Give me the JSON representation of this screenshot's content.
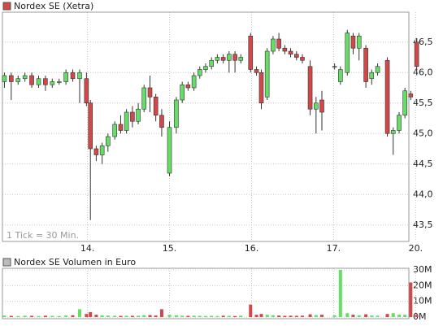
{
  "chart_data": [
    {
      "type": "candlestick",
      "title": "Nordex SE (Xetra)",
      "annotation": "1 Tick = 30 Min.",
      "x": [
        -0.012,
        0.071,
        0.155,
        0.238,
        0.321,
        0.405,
        0.488,
        0.571,
        0.655,
        0.738,
        0.821,
        0.905,
        0.988,
        1.036,
        1.107,
        1.179,
        1.25,
        1.333,
        1.405,
        1.476,
        1.548,
        1.619,
        1.69,
        1.762,
        1.833,
        1.905,
        2.0,
        2.083,
        2.155,
        2.226,
        2.298,
        2.369,
        2.44,
        2.512,
        2.583,
        2.655,
        2.726,
        2.798,
        2.869,
        2.988,
        3.06,
        3.119,
        3.19,
        3.262,
        3.333,
        3.405,
        3.476,
        3.548,
        3.619,
        3.714,
        3.786,
        3.857,
        4.012,
        4.083,
        4.167,
        4.238,
        4.31,
        4.393,
        4.464,
        4.536,
        4.655,
        4.726,
        4.798,
        4.869,
        4.94,
        5.012
      ],
      "open": [
        45.85,
        45.95,
        45.85,
        45.9,
        45.95,
        45.8,
        45.9,
        45.8,
        45.85,
        45.85,
        46.0,
        45.9,
        45.9,
        45.5,
        44.75,
        44.65,
        44.8,
        44.95,
        45.15,
        45.05,
        45.35,
        45.2,
        45.4,
        45.75,
        45.6,
        45.3,
        44.35,
        45.1,
        45.55,
        45.8,
        45.75,
        45.95,
        46.05,
        46.1,
        46.2,
        46.25,
        46.2,
        46.3,
        46.2,
        46.6,
        46.05,
        46.0,
        45.6,
        46.35,
        46.55,
        46.4,
        46.35,
        46.3,
        46.25,
        46.1,
        45.4,
        45.55,
        46.1,
        45.85,
        46.0,
        46.6,
        46.4,
        46.4,
        45.9,
        46.0,
        46.2,
        45.0,
        45.05,
        45.3,
        45.65,
        46.5
      ],
      "high": [
        46.0,
        46.0,
        45.95,
        46.0,
        46.0,
        45.95,
        45.95,
        45.9,
        45.9,
        46.05,
        46.05,
        46.05,
        46.0,
        45.55,
        44.8,
        44.85,
        45.0,
        45.2,
        45.3,
        45.4,
        45.45,
        45.5,
        45.8,
        45.95,
        45.65,
        45.4,
        45.2,
        45.6,
        45.85,
        45.85,
        46.0,
        46.1,
        46.15,
        46.25,
        46.3,
        46.3,
        46.35,
        46.35,
        46.3,
        46.65,
        46.1,
        46.05,
        46.4,
        46.6,
        46.65,
        46.45,
        46.4,
        46.35,
        46.3,
        46.2,
        45.6,
        45.7,
        46.15,
        46.1,
        46.7,
        46.65,
        46.65,
        46.45,
        46.05,
        46.15,
        46.25,
        45.1,
        45.35,
        45.75,
        45.7,
        46.55
      ],
      "low": [
        45.75,
        45.55,
        45.8,
        45.85,
        45.75,
        45.75,
        45.7,
        45.75,
        45.8,
        45.8,
        45.85,
        45.5,
        45.45,
        43.58,
        44.55,
        44.5,
        44.7,
        44.9,
        45.0,
        45.0,
        45.1,
        45.15,
        45.35,
        45.35,
        45.2,
        44.95,
        44.3,
        45.0,
        45.5,
        45.7,
        45.7,
        45.9,
        46.0,
        46.05,
        46.15,
        46.15,
        46.0,
        46.0,
        46.15,
        46.0,
        45.95,
        45.4,
        45.55,
        46.3,
        46.35,
        46.3,
        46.25,
        46.2,
        46.15,
        45.3,
        45.0,
        45.05,
        46.05,
        45.8,
        45.95,
        46.3,
        46.2,
        45.75,
        45.8,
        45.95,
        44.95,
        44.65,
        45.0,
        45.25,
        45.55,
        46.05
      ],
      "close": [
        45.95,
        45.85,
        45.9,
        45.95,
        45.8,
        45.9,
        45.8,
        45.85,
        45.85,
        46.0,
        45.9,
        46.0,
        45.5,
        44.75,
        44.65,
        44.8,
        44.95,
        45.15,
        45.05,
        45.35,
        45.2,
        45.4,
        45.75,
        45.6,
        45.3,
        45.1,
        45.1,
        45.55,
        45.8,
        45.75,
        45.95,
        46.05,
        46.1,
        46.2,
        46.25,
        46.2,
        46.3,
        46.2,
        46.25,
        46.05,
        46.0,
        45.5,
        46.35,
        46.55,
        46.4,
        46.35,
        46.3,
        46.25,
        46.2,
        45.4,
        45.5,
        45.35,
        46.1,
        46.05,
        46.65,
        46.4,
        46.6,
        45.85,
        46.0,
        46.1,
        45.0,
        45.05,
        45.3,
        45.7,
        45.6,
        46.1
      ],
      "up_color": "#66dd66",
      "down_color": "#d04848",
      "xlim": [
        -0.036,
        4.917
      ],
      "ylim": [
        43.23,
        46.99
      ],
      "xticks": [
        {
          "value": 1,
          "label": "14."
        },
        {
          "value": 2,
          "label": "15."
        },
        {
          "value": 3,
          "label": "16."
        },
        {
          "value": 4,
          "label": "17."
        },
        {
          "value": 5,
          "label": "20."
        }
      ],
      "yticks": [
        {
          "value": 43.5,
          "label": "43,5"
        },
        {
          "value": 44.0,
          "label": "44,0"
        },
        {
          "value": 44.5,
          "label": "44,5"
        },
        {
          "value": 45.0,
          "label": "45,0"
        },
        {
          "value": 45.5,
          "label": "45,5"
        },
        {
          "value": 46.0,
          "label": "46,0"
        },
        {
          "value": 46.5,
          "label": "46,5"
        }
      ],
      "grid": true
    },
    {
      "type": "bar",
      "title": "Nordex SE Volumen in Euro",
      "x": [
        -0.012,
        0.071,
        0.155,
        0.238,
        0.321,
        0.405,
        0.488,
        0.571,
        0.655,
        0.738,
        0.821,
        0.905,
        0.988,
        1.036,
        1.107,
        1.179,
        1.25,
        1.333,
        1.405,
        1.476,
        1.548,
        1.619,
        1.69,
        1.762,
        1.833,
        1.905,
        2.0,
        2.083,
        2.155,
        2.226,
        2.298,
        2.369,
        2.44,
        2.512,
        2.583,
        2.655,
        2.726,
        2.798,
        2.869,
        2.988,
        3.06,
        3.119,
        3.19,
        3.262,
        3.333,
        3.405,
        3.476,
        3.548,
        3.619,
        3.714,
        3.786,
        3.857,
        4.012,
        4.083,
        4.167,
        4.238,
        4.31,
        4.393,
        4.464,
        4.536,
        4.655,
        4.726,
        4.798,
        4.869,
        4.94,
        5.012
      ],
      "values": [
        1000000,
        800000,
        700000,
        900000,
        800000,
        700000,
        900000,
        800000,
        700000,
        1000000,
        1200000,
        5000000,
        2000000,
        3200000,
        1500000,
        1200000,
        1000000,
        900000,
        800000,
        900000,
        800000,
        900000,
        1200000,
        1300000,
        1000000,
        5000000,
        1500000,
        1200000,
        900000,
        800000,
        900000,
        800000,
        700000,
        800000,
        700000,
        900000,
        800000,
        700000,
        900000,
        8000000,
        1500000,
        2000000,
        1500000,
        1200000,
        1000000,
        800000,
        900000,
        800000,
        900000,
        1800000,
        1300000,
        1500000,
        1200000,
        30000000,
        2500000,
        1500000,
        1200000,
        1800000,
        1000000,
        900000,
        2000000,
        2500000,
        1500000,
        1500000,
        22000000,
        1500000
      ],
      "xlim": [
        -0.036,
        4.917
      ],
      "ylim": [
        -1000000,
        31000000
      ],
      "yticks": [
        {
          "value": 0,
          "label": "0M"
        },
        {
          "value": 10000000,
          "label": "10M"
        },
        {
          "value": 20000000,
          "label": "20M"
        },
        {
          "value": 30000000,
          "label": "30M"
        }
      ],
      "grid": true
    }
  ]
}
